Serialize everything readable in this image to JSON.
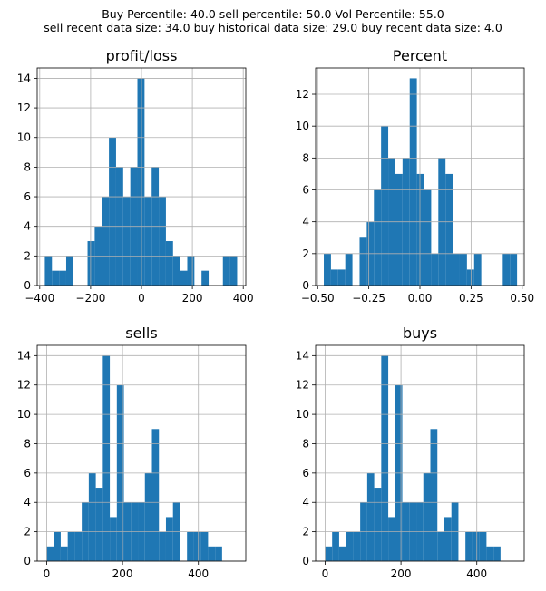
{
  "figure": {
    "suptitle_line1": "Buy Percentile: 40.0 sell percentile: 50.0 Vol Percentile: 55.0",
    "suptitle_line2": "sell recent data size: 34.0 buy historical data size: 29.0 buy recent data size: 4.0"
  },
  "colors": {
    "bar": "#1f77b4",
    "grid": "#b0b0b0",
    "axis": "#000000"
  },
  "chart_data": [
    {
      "type": "bar",
      "title": "profit/loss",
      "bin_edges": [
        -380,
        -352,
        -324,
        -296,
        -268,
        -240,
        -212,
        -184,
        -156,
        -128,
        -100,
        -72,
        -44,
        -16,
        12,
        40,
        68,
        96,
        124,
        152,
        180,
        208,
        236,
        264,
        292,
        320,
        348,
        376
      ],
      "values": [
        2,
        1,
        1,
        2,
        0,
        0,
        3,
        4,
        6,
        10,
        8,
        6,
        8,
        14,
        6,
        8,
        6,
        3,
        2,
        1,
        2,
        0,
        1,
        0,
        0,
        2,
        2
      ],
      "xlim": [
        -410,
        410
      ],
      "ylim": [
        0,
        14.7
      ],
      "xticks": [
        -400,
        -200,
        0,
        200,
        400
      ],
      "xticklabels": [
        "−400",
        "−200",
        "0",
        "200",
        "400"
      ],
      "yticks": [
        0,
        2,
        4,
        6,
        8,
        10,
        12,
        14
      ],
      "yticklabels": [
        "0",
        "2",
        "4",
        "6",
        "8",
        "10",
        "12",
        "14"
      ],
      "grid": true
    },
    {
      "type": "bar",
      "title": "Percent",
      "bin_edges": [
        -0.47,
        -0.435,
        -0.4,
        -0.365,
        -0.33,
        -0.295,
        -0.26,
        -0.225,
        -0.19,
        -0.155,
        -0.12,
        -0.085,
        -0.05,
        -0.015,
        0.02,
        0.055,
        0.09,
        0.125,
        0.16,
        0.195,
        0.23,
        0.265,
        0.3,
        0.335,
        0.37,
        0.405,
        0.44,
        0.475
      ],
      "values": [
        2,
        1,
        1,
        2,
        0,
        3,
        4,
        6,
        10,
        8,
        7,
        8,
        13,
        7,
        6,
        2,
        8,
        7,
        2,
        2,
        1,
        2,
        0,
        0,
        0,
        2,
        2
      ],
      "xlim": [
        -0.51,
        0.51
      ],
      "ylim": [
        0,
        13.65
      ],
      "xticks": [
        -0.5,
        -0.25,
        0,
        0.25,
        0.5
      ],
      "xticklabels": [
        "−0.50",
        "−0.25",
        "0.00",
        "0.25",
        "0.50"
      ],
      "yticks": [
        0,
        2,
        4,
        6,
        8,
        10,
        12
      ],
      "yticklabels": [
        "0",
        "2",
        "4",
        "6",
        "8",
        "10",
        "12"
      ],
      "grid": true
    },
    {
      "type": "bar",
      "title": "sells",
      "bin_edges": [
        0,
        18.5,
        37,
        55.5,
        74,
        92.5,
        111,
        129.5,
        148,
        166.5,
        185,
        203.5,
        222,
        240.5,
        259,
        277.5,
        296,
        314.5,
        333,
        351.5,
        370,
        388.5,
        407,
        425.5,
        444,
        462.5,
        481,
        500
      ],
      "values": [
        1,
        2,
        1,
        2,
        2,
        4,
        6,
        5,
        14,
        3,
        12,
        4,
        4,
        4,
        6,
        9,
        2,
        3,
        4,
        0,
        2,
        2,
        2,
        1,
        1,
        0,
        0
      ],
      "xlim": [
        -25,
        525
      ],
      "ylim": [
        0,
        14.7
      ],
      "xticks": [
        0,
        200,
        400
      ],
      "xticklabels": [
        "0",
        "200",
        "400"
      ],
      "yticks": [
        0,
        2,
        4,
        6,
        8,
        10,
        12,
        14
      ],
      "yticklabels": [
        "0",
        "2",
        "4",
        "6",
        "8",
        "10",
        "12",
        "14"
      ],
      "grid": true
    },
    {
      "type": "bar",
      "title": "buys",
      "bin_edges": [
        0,
        18.5,
        37,
        55.5,
        74,
        92.5,
        111,
        129.5,
        148,
        166.5,
        185,
        203.5,
        222,
        240.5,
        259,
        277.5,
        296,
        314.5,
        333,
        351.5,
        370,
        388.5,
        407,
        425.5,
        444,
        462.5,
        481,
        500
      ],
      "values": [
        1,
        2,
        1,
        2,
        2,
        4,
        6,
        5,
        14,
        3,
        12,
        4,
        4,
        4,
        6,
        9,
        2,
        3,
        4,
        0,
        2,
        2,
        2,
        1,
        1,
        0,
        0
      ],
      "xlim": [
        -25,
        525
      ],
      "ylim": [
        0,
        14.7
      ],
      "xticks": [
        0,
        200,
        400
      ],
      "xticklabels": [
        "0",
        "200",
        "400"
      ],
      "yticks": [
        0,
        2,
        4,
        6,
        8,
        10,
        12,
        14
      ],
      "yticklabels": [
        "0",
        "2",
        "4",
        "6",
        "8",
        "10",
        "12",
        "14"
      ],
      "grid": true
    }
  ]
}
